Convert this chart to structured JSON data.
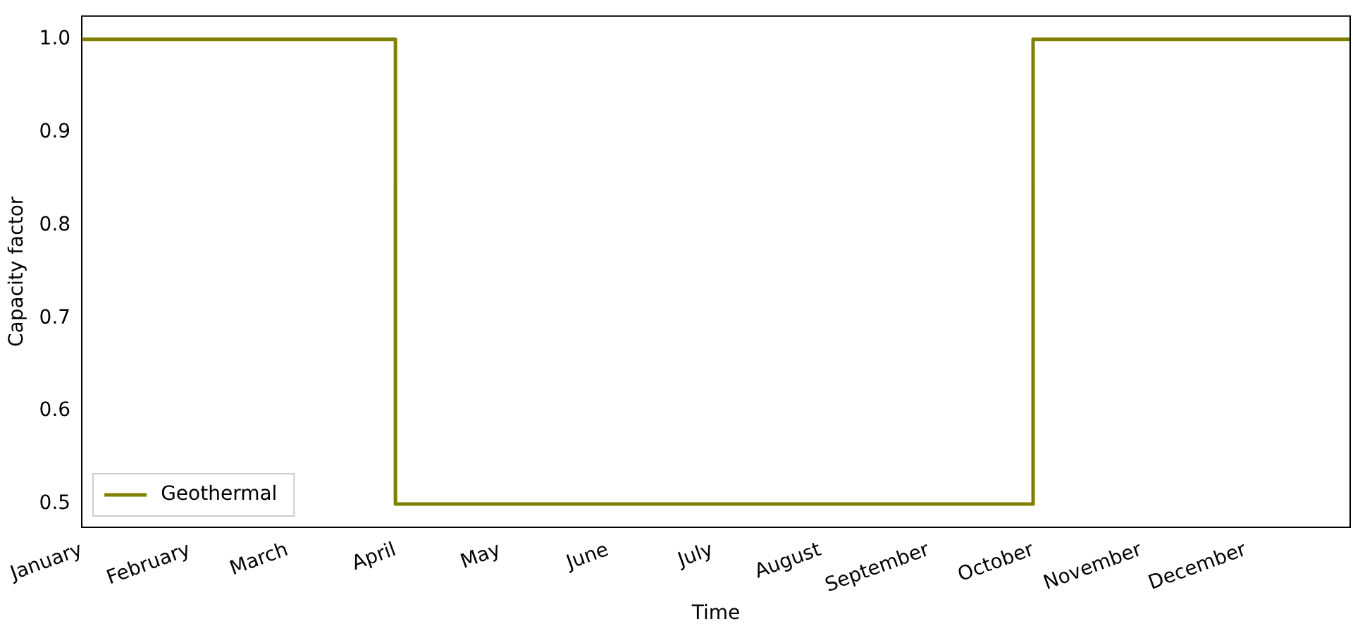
{
  "chart_data": {
    "type": "step",
    "xlabel": "Time",
    "ylabel": "Capacity factor",
    "x": [
      "--01-01",
      "--04-01",
      "--10-01",
      "--12-31"
    ],
    "series": [
      {
        "name": "Geothermal",
        "color": "#808000",
        "values": [
          1.0,
          0.5,
          1.0,
          1.0
        ]
      }
    ],
    "xlim": [
      "--01-01",
      "--12-31"
    ],
    "xticks": [
      {
        "value": "--01-01",
        "label": "January"
      },
      {
        "value": "--02-01",
        "label": "February"
      },
      {
        "value": "--03-01",
        "label": "March"
      },
      {
        "value": "--04-01",
        "label": "April"
      },
      {
        "value": "--05-01",
        "label": "May"
      },
      {
        "value": "--06-01",
        "label": "June"
      },
      {
        "value": "--07-01",
        "label": "July"
      },
      {
        "value": "--08-01",
        "label": "August"
      },
      {
        "value": "--09-01",
        "label": "September"
      },
      {
        "value": "--10-01",
        "label": "October"
      },
      {
        "value": "--11-01",
        "label": "November"
      },
      {
        "value": "--12-01",
        "label": "December"
      }
    ],
    "ylim": [
      0.475,
      1.025
    ],
    "yticks": [
      0.5,
      0.6,
      0.7,
      0.8,
      0.9,
      {
        "value": 1.0,
        "label": "1.0"
      }
    ],
    "grid": false,
    "legend": "bottom left",
    "line_style": "solid",
    "marker": "none"
  }
}
